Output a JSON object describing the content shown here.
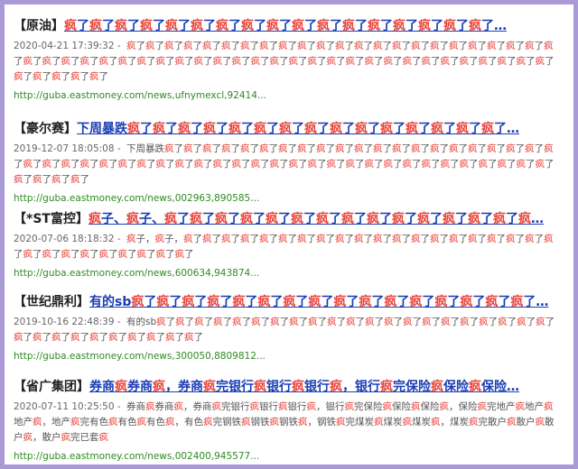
{
  "results": [
    {
      "tag": "【原油】",
      "title": "疯了疯了疯了疯了疯了疯了疯了疯了疯了疯了疯了疯了疯了疯了疯了疯了疯了…",
      "time": "2020-04-21 17:39:32 -",
      "snippet": "疯了疯了疯了疯了疯了疯了疯了疯了疯了疯了疯了疯了疯了疯了疯了疯了疯了疯了疯了疯了疯了疯了疯了疯了疯了疯了疯了疯了疯了疯了疯了疯了疯了疯了疯了疯了疯了疯了疯了疯了疯了疯了疯了疯了疯了疯了疯了疯了疯了疯了疯了疯了疯了疯了疯了疯了",
      "url": "http://guba.eastmoney.com/news,ufnymexcl,92414..."
    },
    {
      "tag": "【豪尔赛】",
      "title": "下周暴跌疯了疯了疯了疯了疯了疯了疯了疯了疯了疯了疯了疯了疯了疯了疯了…",
      "time": "2019-12-07 18:05:08 -",
      "snippet": "下周暴跌疯了疯了疯了疯了疯了疯了疯了疯了疯了疯了疯了疯了疯了疯了疯了疯了疯了疯了疯了疯了疯了疯了疯了疯了疯了疯了疯了疯了疯了疯了疯了疯了疯了疯了疯了疯了疯了疯了疯了疯了疯了疯了疯了疯了疯了疯了疯了疯了疯了疯了疯了疯了疯了",
      "url": "http://guba.eastmoney.com/news,002963,890585..."
    },
    {
      "tag": "【*ST富控】",
      "title": "疯子、疯子、疯了疯了疯了疯了疯了疯了疯了疯了疯了疯了疯了疯了疯了疯了疯…",
      "time": "2020-07-06 18:18:32 -",
      "snippet": "疯子，疯子，疯了疯了疯了疯了疯了疯了疯了疯了疯了疯了疯了疯了疯了疯了疯了疯了疯了疯了疯了疯了疯了疯了疯了疯了疯了疯了疯了疯了疯了",
      "url": "http://guba.eastmoney.com/news,600634,943874..."
    },
    {
      "tag": "【世纪鼎利】",
      "title": "有的sb疯了疯了疯了疯了疯了疯了疯了疯了疯了疯了疯了疯了疯了疯了疯了疯了…",
      "time": "2019-10-16 22:48:39 -",
      "snippet": "有的sb疯了疯了疯了疯了疯了疯了疯了疯了疯了疯了疯了疯了疯了疯了疯了疯了疯了疯了疯了疯了疯了疯了疯了疯了疯了疯了疯了疯了疯了疯了疯了",
      "url": "http://guba.eastmoney.com/news,300050,8809812..."
    },
    {
      "tag": "【省广集团】",
      "title": "券商疯券商疯，券商疯完银行疯银行疯银行疯，银行疯完保险疯保险疯保险…",
      "time": "2020-07-11 10:25:50 -",
      "snippet": "券商疯券商疯，券商疯完银行疯银行疯银行疯，银行疯完保险疯保险疯保险疯，保险疯完地产疯地产疯地产疯，地产疯完有色疯有色疯有色疯，有色疯完钢铁疯钢铁疯钢铁疯，钢铁疯完煤炭疯煤炭疯煤炭疯，煤炭疯完散户疯散户疯散户疯，散户疯完已套疯",
      "url": "http://guba.eastmoney.com/news,002400,945577..."
    }
  ]
}
